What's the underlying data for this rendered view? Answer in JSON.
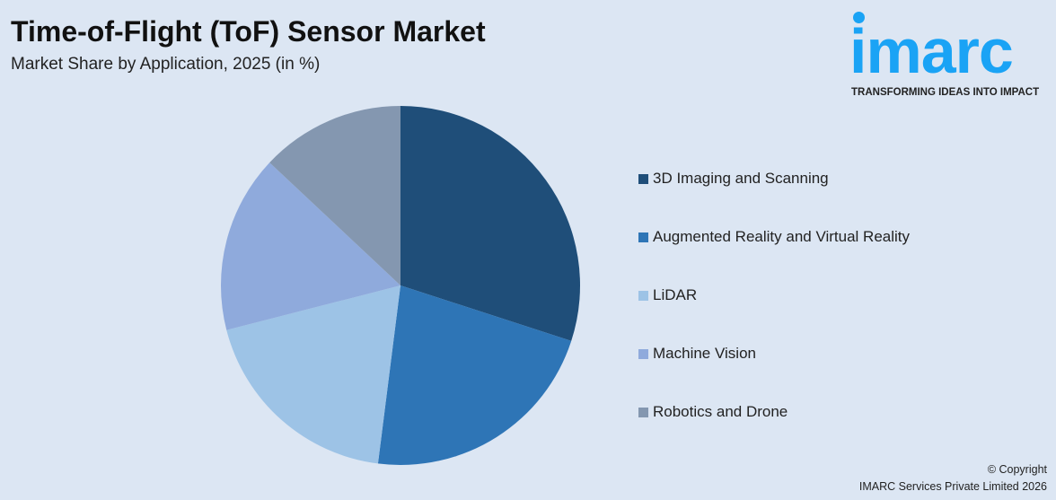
{
  "header": {
    "title": "Time-of-Flight (ToF) Sensor Market",
    "subtitle": "Market Share by Application, 2025 (in %)"
  },
  "logo": {
    "word": "imarc",
    "tagline": "TRANSFORMING IDEAS INTO IMPACT",
    "color": "#1aa3f5"
  },
  "chart_data": {
    "type": "pie",
    "title": "Time-of-Flight (ToF) Sensor Market",
    "subtitle": "Market Share by Application, 2025 (in %)",
    "categories": [
      "3D Imaging and Scanning",
      "Augmented Reality and Virtual Reality",
      "LiDAR",
      "Machine Vision",
      "Robotics and Drone"
    ],
    "values": [
      30,
      22,
      19,
      16,
      13
    ],
    "colors": [
      "#1f4e79",
      "#2e75b6",
      "#9dc3e6",
      "#8faadc",
      "#8497b0"
    ],
    "start_angle": "12 o'clock, clockwise",
    "legend_placement": "right"
  },
  "footer": {
    "copyright": "© Copyright",
    "company": "IMARC Services Private Limited 2026"
  }
}
